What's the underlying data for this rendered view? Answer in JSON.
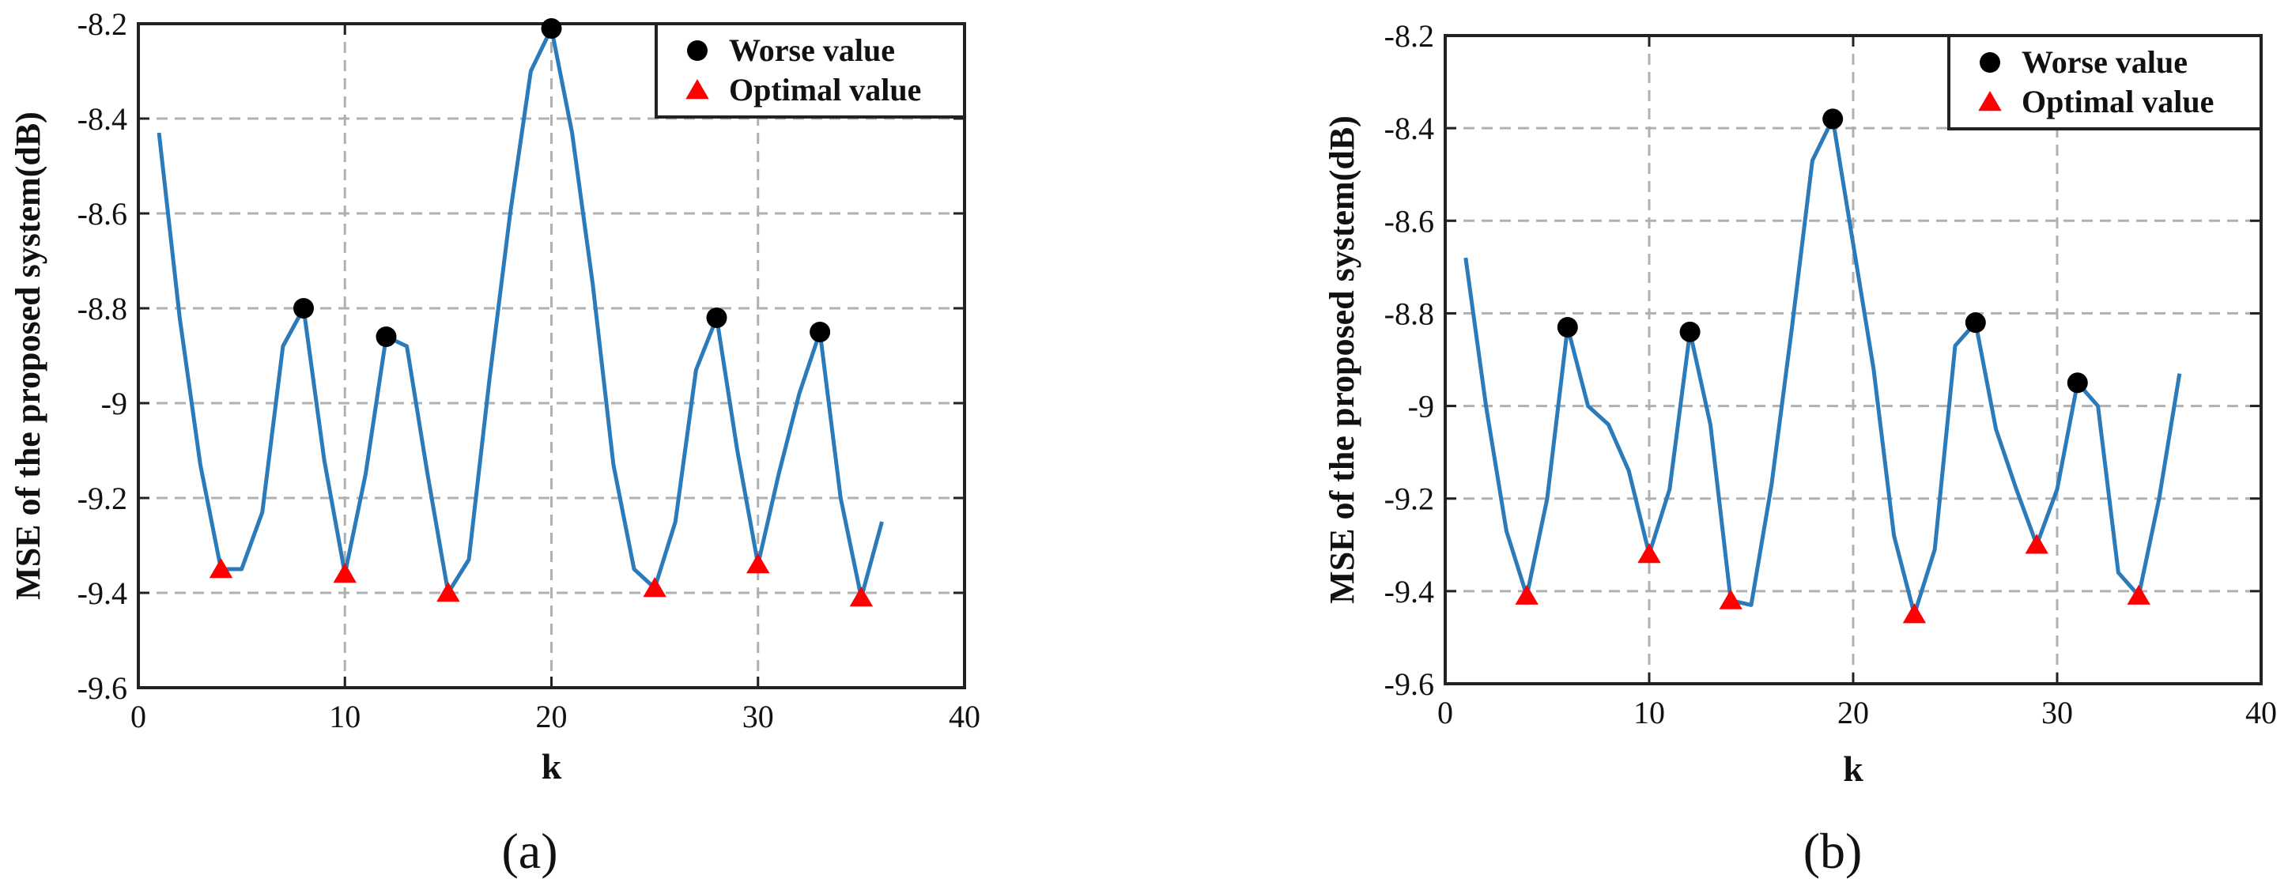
{
  "chart_data": [
    {
      "type": "line",
      "panel_label": "(a)",
      "xlabel": "k",
      "ylabel": "MSE of the proposed system(dB)",
      "xlim": [
        0,
        40
      ],
      "ylim": [
        -9.6,
        -8.2
      ],
      "xticks": [
        0,
        10,
        20,
        30,
        40
      ],
      "xtick_labels": [
        "0",
        "10",
        "20",
        "30",
        "40"
      ],
      "yticks": [
        -9.6,
        -9.4,
        -9.2,
        -9.0,
        -8.8,
        -8.6,
        -8.4,
        -8.2
      ],
      "ytick_labels": [
        "-9.6",
        "-9.4",
        "-9.2",
        "-9",
        "-8.8",
        "-8.6",
        "-8.4",
        "-8.2"
      ],
      "grid": true,
      "legend_position": "top-right",
      "series": [
        {
          "name": "MSE",
          "color": "#2b7bba",
          "x": [
            1,
            2,
            3,
            4,
            5,
            6,
            7,
            8,
            9,
            10,
            11,
            12,
            13,
            14,
            15,
            16,
            17,
            18,
            19,
            20,
            21,
            22,
            23,
            24,
            25,
            26,
            27,
            28,
            29,
            30,
            31,
            32,
            33,
            34,
            35,
            36
          ],
          "y": [
            -8.43,
            -8.82,
            -9.13,
            -9.35,
            -9.35,
            -9.23,
            -8.88,
            -8.8,
            -9.12,
            -9.36,
            -9.15,
            -8.86,
            -8.88,
            -9.15,
            -9.4,
            -9.33,
            -8.95,
            -8.6,
            -8.3,
            -8.21,
            -8.43,
            -8.75,
            -9.13,
            -9.35,
            -9.39,
            -9.25,
            -8.93,
            -8.82,
            -9.1,
            -9.34,
            -9.15,
            -8.98,
            -8.85,
            -9.2,
            -9.41,
            -9.25
          ]
        }
      ],
      "worse_points": {
        "label": "Worse value",
        "color": "#000000",
        "x": [
          8,
          12,
          20,
          28,
          33
        ],
        "y": [
          -8.8,
          -8.86,
          -8.21,
          -8.82,
          -8.85
        ]
      },
      "optimal_points": {
        "label": "Optimal value",
        "color": "#ff0000",
        "x": [
          4,
          10,
          15,
          25,
          30,
          35
        ],
        "y": [
          -9.35,
          -9.36,
          -9.4,
          -9.39,
          -9.34,
          -9.41
        ]
      }
    },
    {
      "type": "line",
      "panel_label": "(b)",
      "xlabel": "k",
      "ylabel": "MSE of the proposed system(dB)",
      "xlim": [
        0,
        40
      ],
      "ylim": [
        -9.6,
        -8.2
      ],
      "xticks": [
        0,
        10,
        20,
        30,
        40
      ],
      "xtick_labels": [
        "0",
        "10",
        "20",
        "30",
        "40"
      ],
      "yticks": [
        -9.6,
        -9.4,
        -9.2,
        -9.0,
        -8.8,
        -8.6,
        -8.4,
        -8.2
      ],
      "ytick_labels": [
        "-9.6",
        "-9.4",
        "-9.2",
        "-9",
        "-8.8",
        "-8.6",
        "-8.4",
        "-8.2"
      ],
      "grid": true,
      "legend_position": "top-right",
      "series": [
        {
          "name": "MSE",
          "color": "#2b7bba",
          "x": [
            1,
            2,
            3,
            4,
            5,
            6,
            7,
            8,
            9,
            10,
            11,
            12,
            13,
            14,
            15,
            16,
            17,
            18,
            19,
            20,
            21,
            22,
            23,
            24,
            25,
            26,
            27,
            28,
            29,
            30,
            31,
            32,
            33,
            34,
            35,
            36
          ],
          "y": [
            -8.68,
            -9.0,
            -9.27,
            -9.41,
            -9.2,
            -8.83,
            -9.0,
            -9.04,
            -9.14,
            -9.32,
            -9.18,
            -8.84,
            -9.04,
            -9.42,
            -9.43,
            -9.17,
            -8.83,
            -8.47,
            -8.38,
            -8.65,
            -8.92,
            -9.28,
            -9.45,
            -9.31,
            -8.87,
            -8.82,
            -9.05,
            -9.18,
            -9.3,
            -9.18,
            -8.95,
            -9.0,
            -9.36,
            -9.41,
            -9.2,
            -8.93
          ]
        }
      ],
      "worse_points": {
        "label": "Worse value",
        "color": "#000000",
        "x": [
          6,
          12,
          19,
          26,
          31
        ],
        "y": [
          -8.83,
          -8.84,
          -8.38,
          -8.82,
          -8.95
        ]
      },
      "optimal_points": {
        "label": "Optimal value",
        "color": "#ff0000",
        "x": [
          4,
          10,
          14,
          23,
          29,
          34
        ],
        "y": [
          -9.41,
          -9.32,
          -9.42,
          -9.45,
          -9.3,
          -9.41
        ]
      }
    }
  ]
}
